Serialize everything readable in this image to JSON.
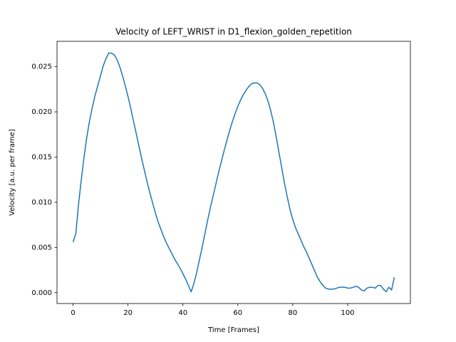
{
  "chart_data": {
    "type": "line",
    "title": "Velocity of LEFT_WRIST in D1_flexion_golden_repetition",
    "x_label": "Time [Frames]",
    "y_label": "Velocity [a.u. per frame]",
    "x": [
      0,
      1,
      2,
      3,
      4,
      5,
      6,
      7,
      8,
      9,
      10,
      11,
      12,
      13,
      14,
      15,
      16,
      17,
      18,
      19,
      20,
      21,
      22,
      23,
      24,
      25,
      26,
      27,
      28,
      29,
      30,
      31,
      32,
      33,
      34,
      35,
      36,
      37,
      38,
      39,
      40,
      41,
      42,
      43,
      44,
      45,
      46,
      47,
      48,
      49,
      50,
      51,
      52,
      53,
      54,
      55,
      56,
      57,
      58,
      59,
      60,
      61,
      62,
      63,
      64,
      65,
      66,
      67,
      68,
      69,
      70,
      71,
      72,
      73,
      74,
      75,
      76,
      77,
      78,
      79,
      80,
      81,
      82,
      83,
      84,
      85,
      86,
      87,
      88,
      89,
      90,
      91,
      92,
      93,
      94,
      95,
      96,
      97,
      98,
      99,
      100,
      101,
      102,
      103,
      104,
      105,
      106,
      107,
      108,
      109,
      110,
      111,
      112,
      113,
      114,
      115,
      116,
      117
    ],
    "series": [
      {
        "name": "LEFT_WRIST",
        "color": "#1f77b4",
        "values": [
          0.0056,
          0.0065,
          0.0098,
          0.0125,
          0.015,
          0.0172,
          0.019,
          0.0205,
          0.0218,
          0.0229,
          0.024,
          0.0251,
          0.0259,
          0.0265,
          0.0265,
          0.0263,
          0.0258,
          0.025,
          0.024,
          0.0229,
          0.0217,
          0.0204,
          0.019,
          0.0176,
          0.0162,
          0.0148,
          0.0135,
          0.0122,
          0.011,
          0.0099,
          0.0088,
          0.0078,
          0.007,
          0.0062,
          0.0055,
          0.0049,
          0.0043,
          0.0037,
          0.0032,
          0.0027,
          0.0021,
          0.0015,
          0.0008,
          0.0001,
          0.001,
          0.0022,
          0.0036,
          0.005,
          0.0065,
          0.008,
          0.0094,
          0.0107,
          0.012,
          0.0133,
          0.0145,
          0.0157,
          0.0168,
          0.0179,
          0.0189,
          0.0198,
          0.0206,
          0.0213,
          0.0219,
          0.0224,
          0.0228,
          0.0231,
          0.0232,
          0.0232,
          0.023,
          0.0226,
          0.022,
          0.0212,
          0.0201,
          0.0188,
          0.0172,
          0.0155,
          0.0138,
          0.0121,
          0.0106,
          0.0092,
          0.0081,
          0.0072,
          0.0065,
          0.0058,
          0.0051,
          0.0045,
          0.0038,
          0.0031,
          0.0024,
          0.0017,
          0.0012,
          0.0008,
          0.0005,
          0.0004,
          0.0004,
          0.0004,
          0.0005,
          0.0006,
          0.0006,
          0.0006,
          0.0005,
          0.0005,
          0.0006,
          0.0007,
          0.0006,
          0.0003,
          0.0002,
          0.0005,
          0.0006,
          0.0006,
          0.0005,
          0.0008,
          0.0008,
          0.0004,
          0.0001,
          0.0006,
          0.0003,
          0.0017
        ]
      }
    ],
    "xlim": [
      -5.85,
      122.85
    ],
    "ylim": [
      -0.0012,
      0.0278
    ],
    "xticks": [
      0,
      20,
      40,
      60,
      80,
      100
    ],
    "yticks": [
      {
        "value": 0,
        "label": "0.000"
      },
      {
        "value": 0.005,
        "label": "0.005"
      },
      {
        "value": 0.01,
        "label": "0.010"
      },
      {
        "value": 0.015,
        "label": "0.015"
      },
      {
        "value": 0.02,
        "label": "0.020"
      },
      {
        "value": 0.025,
        "label": "0.025"
      }
    ],
    "grid": false
  }
}
